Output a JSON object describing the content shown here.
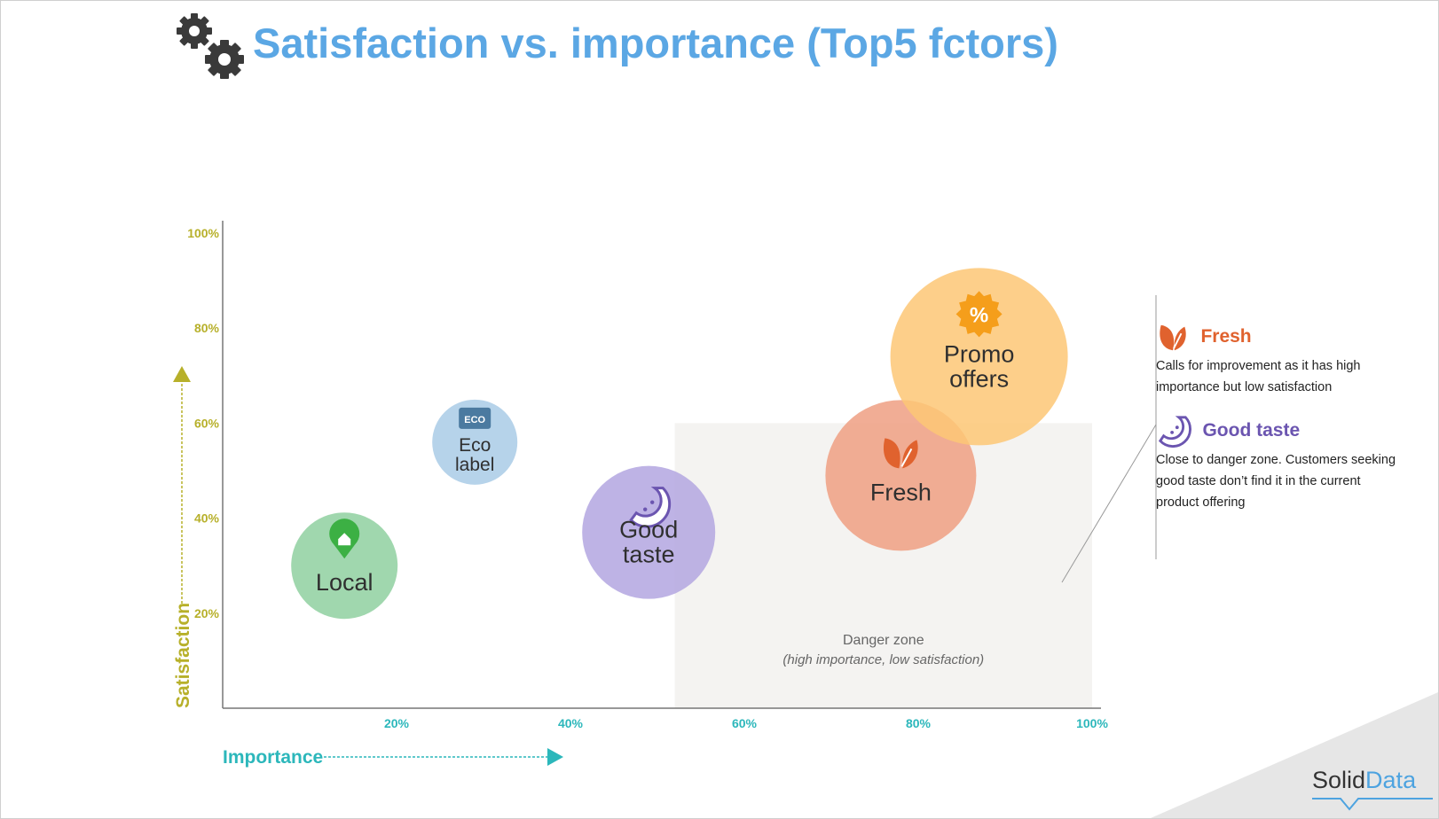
{
  "title": "Satisfaction vs. importance (Top5 fctors)",
  "chart_data": {
    "type": "scatter",
    "title": "Satisfaction vs. importance (Top5 fctors)",
    "xlabel": "Importance",
    "ylabel": "Satisfaction",
    "xlim": [
      0,
      100
    ],
    "ylim": [
      0,
      100
    ],
    "x_ticks": [
      "20%",
      "40%",
      "60%",
      "80%",
      "100%"
    ],
    "y_ticks": [
      "20%",
      "40%",
      "60%",
      "80%",
      "100%"
    ],
    "points": [
      {
        "label": "Local",
        "x": 14,
        "y": 30,
        "size": 60,
        "color": "#8fd0a0",
        "icon": "home-pin-icon",
        "icon_color": "#3cb044"
      },
      {
        "label": "Eco label",
        "x": 29,
        "y": 56,
        "size": 48,
        "color": "#a9cbe6",
        "icon": "eco-tag-icon",
        "icon_color": "#4b7aa0"
      },
      {
        "label": "Good taste",
        "x": 49,
        "y": 37,
        "size": 75,
        "color": "#b3a6e0",
        "icon": "fruit-slice-icon",
        "icon_color": "#6b55b0"
      },
      {
        "label": "Fresh",
        "x": 78,
        "y": 49,
        "size": 85,
        "color": "#ef9f82",
        "icon": "leaf-icon",
        "icon_color": "#e0622e"
      },
      {
        "label": "Promo offers",
        "x": 87,
        "y": 74,
        "size": 100,
        "color": "#fdc776",
        "icon": "percent-badge-icon",
        "icon_color": "#f59e1b"
      }
    ],
    "danger_zone": {
      "label": "Danger zone",
      "sublabel": "(high importance, low satisfaction)",
      "x_range": [
        52,
        100
      ],
      "y_range": [
        0,
        60
      ]
    }
  },
  "notes": [
    {
      "title": "Fresh",
      "text": "Calls for improvement as it has high importance but low satisfaction",
      "color": "#e0622e",
      "icon": "leaf-icon"
    },
    {
      "title": "Good taste",
      "text": "Close to danger zone. Customers seeking good taste don’t find it in the current product offering",
      "color": "#6b55b0",
      "icon": "fruit-slice-icon"
    }
  ],
  "logo": {
    "part1": "Solid",
    "part2": "Data"
  },
  "colors": {
    "title": "#5ba7e4",
    "y_axis": "#b7b02a",
    "x_axis": "#2cb7bb",
    "danger_zone": "#f4f3f1"
  }
}
